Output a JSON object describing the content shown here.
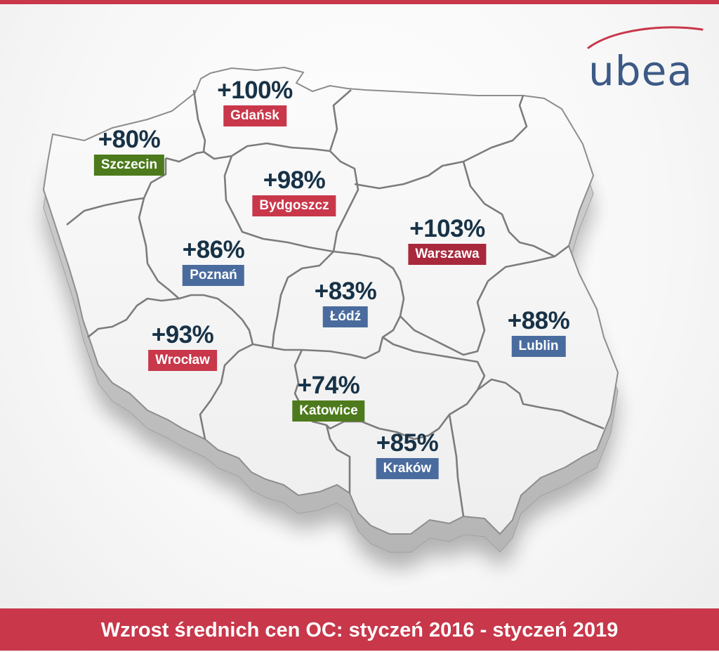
{
  "title": "Wzrost średnich cen OC: styczeń 2016 - styczeń 2019",
  "logo": {
    "text": "ubea"
  },
  "colors": {
    "red": "#c8374a",
    "dark_red": "#a8283c",
    "blue": "#4a6b9e",
    "green": "#4d7a1c",
    "text_dark": "#173247",
    "logo_blue": "#3d5a86"
  },
  "cities": [
    {
      "name": "Gdańsk",
      "value": "+100%",
      "tag_color": "red"
    },
    {
      "name": "Szczecin",
      "value": "+80%",
      "tag_color": "green"
    },
    {
      "name": "Bydgoszcz",
      "value": "+98%",
      "tag_color": "red"
    },
    {
      "name": "Warszawa",
      "value": "+103%",
      "tag_color": "dark_red"
    },
    {
      "name": "Poznań",
      "value": "+86%",
      "tag_color": "blue"
    },
    {
      "name": "Łódź",
      "value": "+83%",
      "tag_color": "blue"
    },
    {
      "name": "Lublin",
      "value": "+88%",
      "tag_color": "blue"
    },
    {
      "name": "Wrocław",
      "value": "+93%",
      "tag_color": "red"
    },
    {
      "name": "Katowice",
      "value": "+74%",
      "tag_color": "green"
    },
    {
      "name": "Kraków",
      "value": "+85%",
      "tag_color": "blue"
    }
  ]
}
